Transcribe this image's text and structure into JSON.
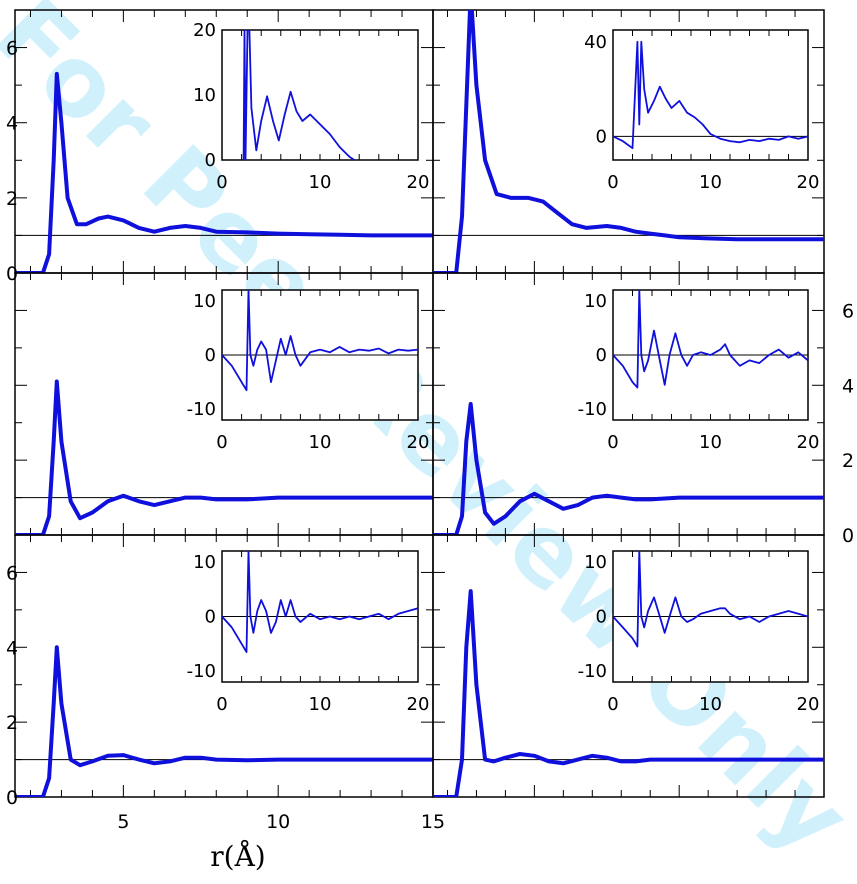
{
  "watermark": "For Peer Review Only",
  "chart_data": {
    "type": "line",
    "xlabel": "r(Å)",
    "main_x_ticks": [
      5,
      10,
      15
    ],
    "main_x_range": [
      1.5,
      15
    ],
    "main_y_ticks_left": [
      0,
      2,
      4,
      6
    ],
    "main_y_ticks_right": [
      0,
      2,
      4,
      6
    ],
    "main_y_range": [
      0,
      7
    ],
    "inset_x_ticks": [
      0,
      10,
      20
    ],
    "inset_x_range": [
      0,
      20
    ],
    "main_line_color": "#1010dd",
    "reference_line_y": 1,
    "panels": [
      {
        "id": "top-left",
        "main": {
          "x": [
            2.4,
            2.6,
            2.75,
            2.85,
            3.0,
            3.2,
            3.5,
            3.8,
            4.2,
            4.5,
            5.0,
            5.5,
            6.0,
            6.5,
            7.0,
            7.5,
            8.0,
            9.0,
            10,
            11,
            12,
            13,
            14,
            15
          ],
          "y": [
            0,
            0.5,
            3.0,
            5.3,
            4.0,
            2.0,
            1.3,
            1.3,
            1.45,
            1.5,
            1.4,
            1.2,
            1.1,
            1.2,
            1.25,
            1.2,
            1.1,
            1.08,
            1.05,
            1.03,
            1.02,
            1.0,
            1.0,
            1.0
          ]
        },
        "inset": {
          "yticks": [
            0,
            10,
            20
          ],
          "yrange": [
            0,
            20
          ],
          "x": [
            2.2,
            2.3,
            2.4,
            2.6,
            2.8,
            3.0,
            3.5,
            4.0,
            4.6,
            5.2,
            5.8,
            6.4,
            7.0,
            7.6,
            8.2,
            9.0,
            10,
            11,
            12,
            13,
            13.5
          ],
          "y": [
            0,
            20,
            0,
            20,
            20,
            8,
            1.5,
            6,
            9.8,
            6,
            3,
            7,
            10.5,
            7.5,
            6,
            7,
            5.5,
            4,
            2,
            0.5,
            0
          ]
        }
      },
      {
        "id": "top-right",
        "main": {
          "x": [
            2.3,
            2.5,
            2.7,
            2.8,
            3.0,
            3.3,
            3.7,
            4.2,
            4.8,
            5.3,
            5.8,
            6.3,
            6.8,
            7.5,
            8.0,
            8.5,
            9.0,
            9.5,
            10,
            11,
            12,
            13,
            14,
            15
          ],
          "y": [
            0,
            1.5,
            5.5,
            7.5,
            5.0,
            3.0,
            2.1,
            2.0,
            2.0,
            1.9,
            1.6,
            1.3,
            1.2,
            1.25,
            1.2,
            1.1,
            1.05,
            1.0,
            0.95,
            0.92,
            0.9,
            0.9,
            0.9,
            0.9
          ]
        },
        "inset": {
          "yticks": [
            0,
            40
          ],
          "yrange": [
            -10,
            45
          ],
          "x": [
            0,
            1,
            2,
            2.5,
            2.7,
            2.9,
            3.2,
            3.6,
            4.2,
            4.8,
            5.4,
            6.0,
            6.8,
            7.6,
            8.4,
            9.2,
            10,
            11,
            12,
            13,
            14,
            15,
            16,
            17,
            18,
            19,
            20
          ],
          "y": [
            0,
            -2,
            -5,
            40,
            5,
            40,
            20,
            10,
            15,
            21,
            16,
            12,
            15,
            10,
            8,
            5,
            1,
            -1,
            -2,
            -2.5,
            -1.5,
            -2,
            -1,
            -1.5,
            0,
            -1,
            0
          ]
        }
      },
      {
        "id": "mid-left",
        "main": {
          "x": [
            2.4,
            2.6,
            2.75,
            2.85,
            3.0,
            3.3,
            3.6,
            4.0,
            4.5,
            5.0,
            5.5,
            6.0,
            6.5,
            7.0,
            7.5,
            8.0,
            9.0,
            10,
            11,
            12,
            13,
            14,
            15
          ],
          "y": [
            0,
            0.5,
            2.5,
            4.1,
            2.5,
            0.9,
            0.45,
            0.6,
            0.9,
            1.05,
            0.9,
            0.8,
            0.9,
            1.0,
            1.0,
            0.95,
            0.95,
            1.0,
            1.0,
            1.0,
            1.0,
            1.0,
            1.0
          ]
        },
        "inset": {
          "yticks": [
            -10,
            0,
            10
          ],
          "yrange": [
            -12,
            12
          ],
          "x": [
            0,
            1,
            2,
            2.5,
            2.7,
            2.9,
            3.2,
            3.6,
            4.0,
            4.5,
            5.0,
            5.5,
            6.0,
            6.5,
            7.0,
            7.5,
            8.0,
            9.0,
            10,
            11,
            12,
            13,
            14,
            15,
            16,
            17,
            18,
            19,
            20
          ],
          "y": [
            0,
            -2,
            -5,
            -6.5,
            12,
            0,
            -2,
            1,
            2.5,
            1,
            -5,
            -1,
            3,
            0,
            3.5,
            0,
            -2,
            0.5,
            1,
            0.5,
            1.5,
            0.5,
            1,
            0.8,
            1.2,
            0.3,
            1,
            0.8,
            1
          ]
        }
      },
      {
        "id": "mid-right",
        "main": {
          "x": [
            2.3,
            2.5,
            2.65,
            2.8,
            3.0,
            3.3,
            3.6,
            4.0,
            4.5,
            5.0,
            5.5,
            6.0,
            6.5,
            7.0,
            7.5,
            8.0,
            8.5,
            9.0,
            10,
            11,
            12,
            13,
            14,
            15
          ],
          "y": [
            0,
            0.5,
            2.5,
            3.5,
            2.0,
            0.6,
            0.3,
            0.5,
            0.9,
            1.1,
            0.9,
            0.7,
            0.8,
            1.0,
            1.05,
            1.0,
            0.95,
            0.95,
            1.0,
            1.0,
            1.0,
            1.0,
            1.0,
            1.0
          ]
        },
        "inset": {
          "yticks": [
            -10,
            0,
            10
          ],
          "yrange": [
            -12,
            12
          ],
          "x": [
            0,
            1,
            2,
            2.5,
            2.7,
            2.9,
            3.2,
            3.6,
            4.2,
            4.8,
            5.3,
            5.8,
            6.4,
            7.0,
            7.6,
            8.2,
            9.0,
            10,
            11,
            11.5,
            12,
            13,
            14,
            15,
            16,
            17,
            18,
            19,
            20
          ],
          "y": [
            0,
            -2,
            -5,
            -6,
            12,
            0,
            -3,
            -1,
            4.5,
            -1,
            -5.5,
            0,
            4,
            0,
            -2,
            0,
            0.5,
            0,
            1,
            2,
            0,
            -2,
            -1,
            -1.5,
            0,
            1,
            -0.5,
            0.5,
            -1
          ]
        }
      },
      {
        "id": "bottom-left",
        "main": {
          "x": [
            2.4,
            2.6,
            2.75,
            2.85,
            3.0,
            3.3,
            3.6,
            4.0,
            4.5,
            5.0,
            5.5,
            6.0,
            6.5,
            7.0,
            7.5,
            8.0,
            9.0,
            10,
            11,
            12,
            13,
            14,
            15
          ],
          "y": [
            0,
            0.5,
            2.5,
            4.0,
            2.5,
            1.0,
            0.85,
            0.95,
            1.1,
            1.12,
            1.0,
            0.9,
            0.95,
            1.05,
            1.05,
            1.0,
            0.98,
            1.0,
            1.0,
            1.0,
            1.0,
            1.0,
            1.0
          ]
        },
        "inset": {
          "yticks": [
            -10,
            0,
            10
          ],
          "yrange": [
            -12,
            12
          ],
          "x": [
            0,
            1,
            2,
            2.5,
            2.7,
            2.9,
            3.2,
            3.6,
            4.0,
            4.5,
            5.0,
            5.5,
            6.0,
            6.5,
            7.0,
            7.5,
            8.0,
            9.0,
            10,
            11,
            12,
            13,
            14,
            15,
            16,
            17,
            18,
            19,
            20
          ],
          "y": [
            0,
            -2,
            -5,
            -6.5,
            12,
            0,
            -3,
            1,
            3,
            1,
            -3,
            -1,
            3,
            0,
            3,
            0,
            -1,
            0.5,
            -0.5,
            0,
            -0.5,
            0,
            -0.5,
            0,
            0.5,
            -0.5,
            0.5,
            1,
            1.5
          ]
        }
      },
      {
        "id": "bottom-right",
        "main": {
          "x": [
            2.3,
            2.5,
            2.65,
            2.8,
            3.0,
            3.3,
            3.6,
            4.0,
            4.5,
            5.0,
            5.5,
            6.0,
            6.5,
            7.0,
            7.5,
            8.0,
            8.5,
            9.0,
            10,
            11,
            12,
            13,
            14,
            15
          ],
          "y": [
            0,
            1.0,
            4.0,
            5.5,
            3.0,
            1.0,
            0.95,
            1.05,
            1.15,
            1.1,
            0.95,
            0.9,
            1.0,
            1.1,
            1.05,
            0.95,
            0.95,
            1.0,
            1.0,
            1.0,
            1.0,
            1.0,
            1.0,
            1.0
          ]
        },
        "inset": {
          "yticks": [
            -10,
            0,
            10
          ],
          "yrange": [
            -12,
            12
          ],
          "x": [
            0,
            1,
            2,
            2.5,
            2.7,
            2.9,
            3.2,
            3.6,
            4.2,
            4.8,
            5.3,
            5.8,
            6.4,
            7.0,
            7.6,
            8.2,
            9.0,
            10,
            11,
            11.5,
            12,
            13,
            14,
            15,
            16,
            17,
            18,
            19,
            20
          ],
          "y": [
            0,
            -2,
            -4,
            -5.5,
            12,
            0,
            -2,
            1,
            3.5,
            0,
            -3,
            0,
            3.5,
            0,
            -1,
            -0.5,
            0.5,
            1,
            1.5,
            1.5,
            0.5,
            -0.5,
            0,
            -1,
            0,
            0.5,
            1,
            0.5,
            0
          ]
        }
      }
    ]
  }
}
